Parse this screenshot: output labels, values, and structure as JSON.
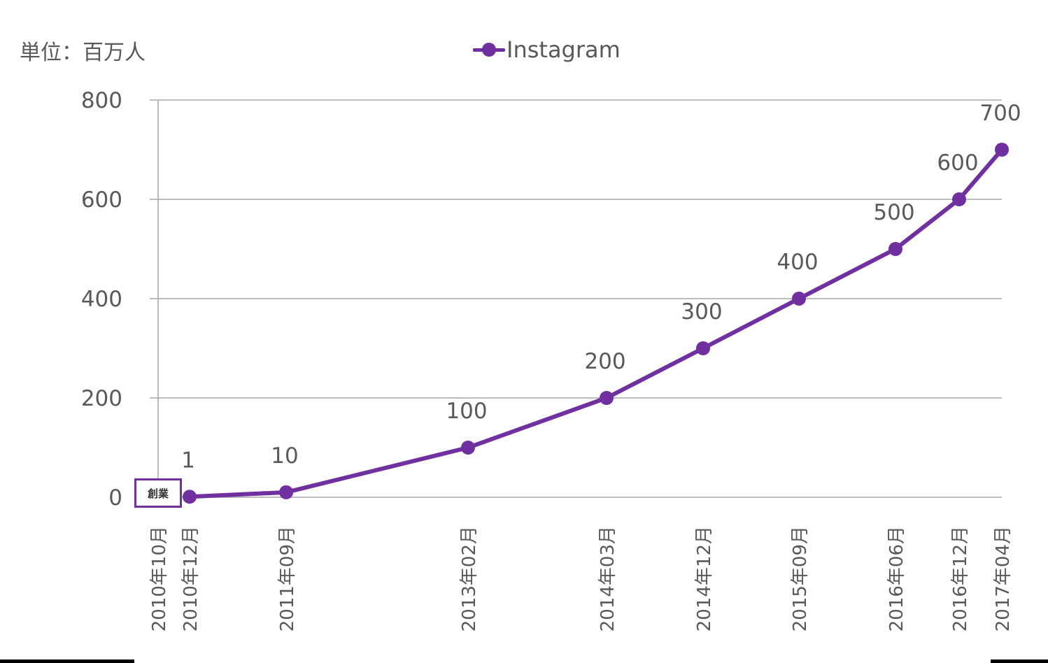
{
  "unit_label": "単位：百万人",
  "founding_label": "創業",
  "colors": {
    "series": "#7030a0",
    "grid": "#a6a6a6",
    "text": "#595959"
  },
  "chart_data": {
    "type": "line",
    "title": "",
    "xlabel": "",
    "ylabel": "",
    "ylim": [
      0,
      800
    ],
    "yticks": [
      0,
      200,
      400,
      600,
      800
    ],
    "grid": true,
    "legend_position": "top-center",
    "x": [
      "2010年10月",
      "2010年12月",
      "2011年09月",
      "2013年02月",
      "2014年03月",
      "2014年12月",
      "2015年09月",
      "2016年06月",
      "2016年12月",
      "2017年04月"
    ],
    "series": [
      {
        "name": "Instagram",
        "color": "#7030a0",
        "points": [
          {
            "x": "2010年12月",
            "y": 1,
            "label": "1"
          },
          {
            "x": "2011年09月",
            "y": 10,
            "label": "10"
          },
          {
            "x": "2013年02月",
            "y": 100,
            "label": "100"
          },
          {
            "x": "2014年03月",
            "y": 200,
            "label": "200"
          },
          {
            "x": "2014年12月",
            "y": 300,
            "label": "300"
          },
          {
            "x": "2015年09月",
            "y": 400,
            "label": "400"
          },
          {
            "x": "2016年06月",
            "y": 500,
            "label": "500"
          },
          {
            "x": "2016年12月",
            "y": 600,
            "label": "600"
          },
          {
            "x": "2017年04月",
            "y": 700,
            "label": "700"
          }
        ]
      }
    ]
  }
}
